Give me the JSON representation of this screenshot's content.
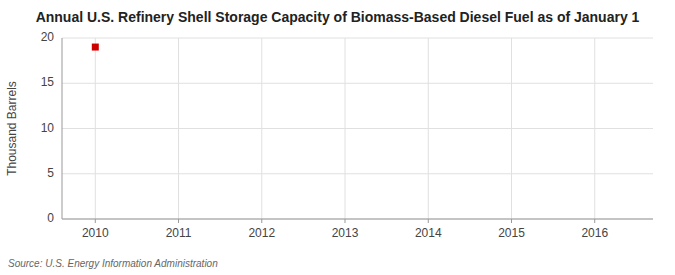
{
  "chart_data": {
    "type": "scatter",
    "title": "Annual U.S. Refinery Shell Storage Capacity of Biomass-Based Diesel Fuel as of January 1",
    "ylabel": "Thousand Barrels",
    "source": "Source: U.S. Energy Information Administration",
    "x": [
      2010
    ],
    "values": [
      19
    ],
    "color": "#cc0000",
    "marker": "square",
    "xlim": [
      2009.6,
      2016.7
    ],
    "ylim": [
      0,
      20
    ],
    "xticks": [
      2010,
      2011,
      2012,
      2013,
      2014,
      2015,
      2016
    ],
    "yticks": [
      0,
      5,
      10,
      15,
      20
    ],
    "grid": true
  }
}
